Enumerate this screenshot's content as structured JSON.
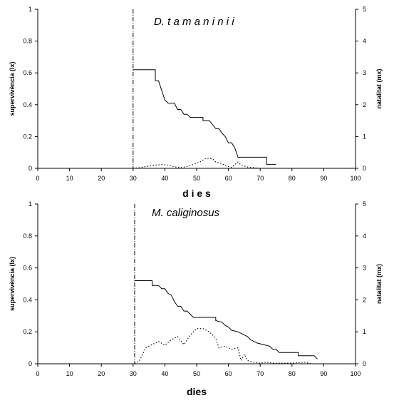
{
  "chart_data": [
    {
      "type": "line",
      "title": "D. t a m a n i n i i",
      "xlabel": "d i e s",
      "ylabel": "supervivència (lx)",
      "y2label": "natalitat (mx)",
      "xlim": [
        0,
        100
      ],
      "ylim": [
        0,
        1
      ],
      "y2lim": [
        0,
        5
      ],
      "xticks": [
        "0",
        "10",
        "20",
        "30",
        "40",
        "50",
        "60",
        "70",
        "80",
        "90",
        "100"
      ],
      "yticks": [
        "0",
        "0.2",
        "0.4",
        "0.6",
        "0.8",
        "1"
      ],
      "y2ticks": [
        "0",
        "1",
        "2",
        "3",
        "4",
        "5"
      ],
      "grid": false,
      "vline_x": 30,
      "series": [
        {
          "axis": "left",
          "style": "solid",
          "values_xy": [
            [
              30,
              0.62
            ],
            [
              37,
              0.62
            ],
            [
              37,
              0.55
            ],
            [
              38,
              0.55
            ],
            [
              40,
              0.43
            ],
            [
              41,
              0.41
            ],
            [
              43,
              0.41
            ],
            [
              44,
              0.37
            ],
            [
              45,
              0.37
            ],
            [
              46,
              0.34
            ],
            [
              47,
              0.34
            ],
            [
              48,
              0.32
            ],
            [
              52,
              0.32
            ],
            [
              52,
              0.3
            ],
            [
              54,
              0.3
            ],
            [
              56,
              0.25
            ],
            [
              57,
              0.25
            ],
            [
              58,
              0.22
            ],
            [
              59,
              0.2
            ],
            [
              60,
              0.16
            ],
            [
              61,
              0.16
            ],
            [
              62,
              0.13
            ],
            [
              63,
              0.07
            ],
            [
              72,
              0.07
            ],
            [
              72,
              0.025
            ],
            [
              75,
              0.025
            ]
          ]
        },
        {
          "axis": "right",
          "style": "dotted",
          "values_xy": [
            [
              30,
              0
            ],
            [
              32,
              0.02
            ],
            [
              35,
              0.07
            ],
            [
              37,
              0.1
            ],
            [
              39,
              0.12
            ],
            [
              41,
              0.1
            ],
            [
              43,
              0.05
            ],
            [
              45,
              0.02
            ],
            [
              47,
              0.06
            ],
            [
              49,
              0.12
            ],
            [
              51,
              0.2
            ],
            [
              53,
              0.32
            ],
            [
              55,
              0.3
            ],
            [
              56,
              0.2
            ],
            [
              58,
              0.15
            ],
            [
              59,
              0.08
            ],
            [
              61,
              0.03
            ],
            [
              63,
              0.2
            ],
            [
              64,
              0.1
            ],
            [
              66,
              0.04
            ],
            [
              68,
              0.02
            ],
            [
              70,
              0
            ]
          ]
        }
      ]
    },
    {
      "type": "line",
      "title": "M. caliginosus",
      "xlabel": "dies",
      "ylabel": "supervivència (lx)",
      "y2label": "natalitat (mx)",
      "xlim": [
        0,
        100
      ],
      "ylim": [
        0,
        1
      ],
      "y2lim": [
        0,
        5
      ],
      "xticks": [
        "0",
        "10",
        "20",
        "30",
        "40",
        "50",
        "60",
        "70",
        "80",
        "90",
        "100"
      ],
      "yticks": [
        "0",
        "0.2",
        "0.4",
        "0.6",
        "0.8",
        "1"
      ],
      "y2ticks": [
        "0",
        "1",
        "2",
        "3",
        "4",
        "5"
      ],
      "grid": false,
      "vline_x": 30.5,
      "series": [
        {
          "axis": "left",
          "style": "solid",
          "values_xy": [
            [
              30.5,
              0.52
            ],
            [
              36,
              0.52
            ],
            [
              36,
              0.49
            ],
            [
              38,
              0.49
            ],
            [
              39,
              0.47
            ],
            [
              40,
              0.47
            ],
            [
              41,
              0.44
            ],
            [
              42,
              0.43
            ],
            [
              43,
              0.39
            ],
            [
              44,
              0.36
            ],
            [
              45,
              0.36
            ],
            [
              46,
              0.33
            ],
            [
              47,
              0.33
            ],
            [
              48,
              0.31
            ],
            [
              49,
              0.29
            ],
            [
              56,
              0.29
            ],
            [
              56,
              0.27
            ],
            [
              58,
              0.26
            ],
            [
              59,
              0.24
            ],
            [
              60,
              0.23
            ],
            [
              61,
              0.21
            ],
            [
              63,
              0.2
            ],
            [
              64,
              0.19
            ],
            [
              66,
              0.17
            ],
            [
              67,
              0.15
            ],
            [
              69,
              0.13
            ],
            [
              71,
              0.12
            ],
            [
              73,
              0.11
            ],
            [
              74,
              0.09
            ],
            [
              75,
              0.09
            ],
            [
              76,
              0.07
            ],
            [
              82,
              0.07
            ],
            [
              82,
              0.05
            ],
            [
              87,
              0.05
            ],
            [
              88,
              0.03
            ]
          ]
        },
        {
          "axis": "right",
          "style": "dotted",
          "values_xy": [
            [
              30.5,
              0
            ],
            [
              32,
              0.1
            ],
            [
              34,
              0.5
            ],
            [
              36,
              0.6
            ],
            [
              38,
              0.7
            ],
            [
              40,
              0.58
            ],
            [
              42,
              0.75
            ],
            [
              44,
              0.85
            ],
            [
              46,
              0.6
            ],
            [
              48,
              0.9
            ],
            [
              50,
              1.1
            ],
            [
              52,
              1.1
            ],
            [
              54,
              1.0
            ],
            [
              56,
              0.8
            ],
            [
              57,
              0.5
            ],
            [
              59,
              0.55
            ],
            [
              61,
              0.45
            ],
            [
              63,
              0.5
            ],
            [
              64,
              0.1
            ],
            [
              65,
              0.3
            ],
            [
              66,
              0.1
            ],
            [
              68,
              0.05
            ],
            [
              70,
              0.02
            ],
            [
              72,
              0.05
            ],
            [
              74,
              0.02
            ],
            [
              80,
              0.02
            ],
            [
              84,
              0.05
            ],
            [
              86,
              0
            ]
          ]
        }
      ]
    }
  ]
}
